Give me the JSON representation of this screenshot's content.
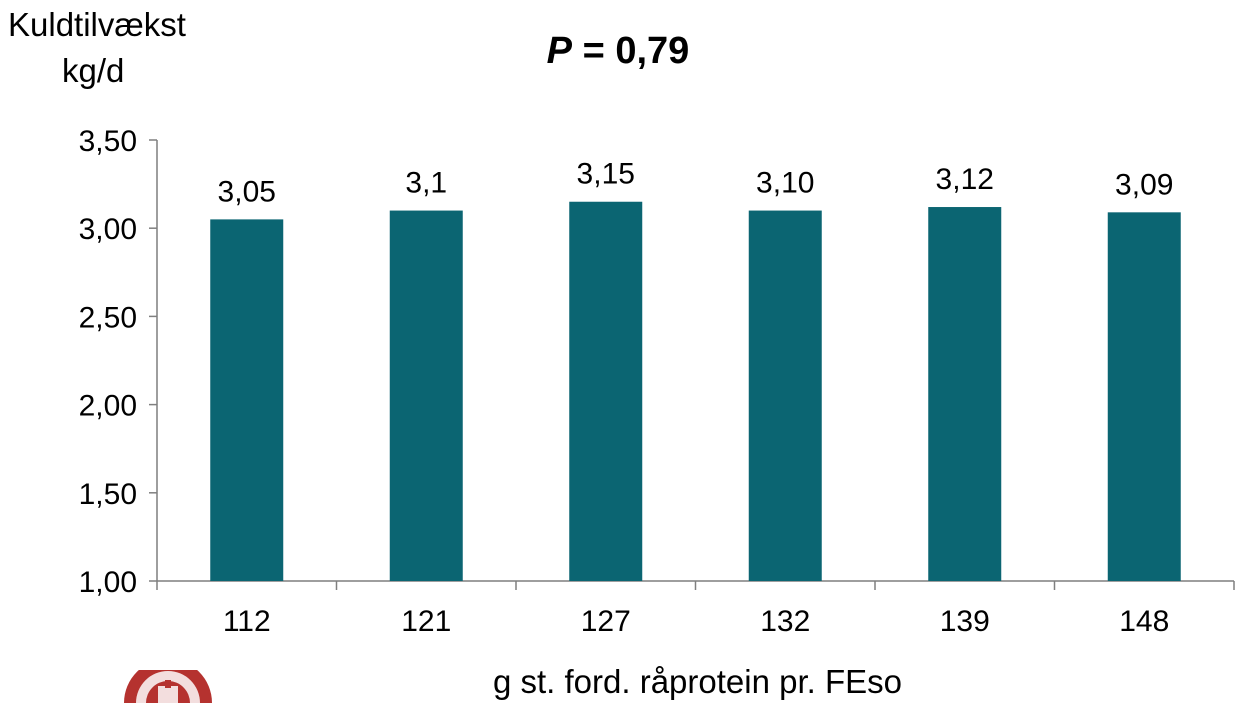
{
  "chart_data": {
    "type": "bar",
    "title_prefix": "P",
    "title_rest": "= 0,79",
    "ylabel_lines": [
      "Kuldtilvækst",
      "kg/d"
    ],
    "xlabel": "g st. ford. råprotein pr. FEso",
    "categories": [
      "112",
      "121",
      "127",
      "132",
      "139",
      "148"
    ],
    "values": [
      3.05,
      3.1,
      3.15,
      3.1,
      3.12,
      3.09
    ],
    "value_labels": [
      "3,05",
      "3,1",
      "3,15",
      "3,10",
      "3,12",
      "3,09"
    ],
    "ylim": [
      1.0,
      3.5
    ],
    "yticks": [
      1.0,
      1.5,
      2.0,
      2.5,
      3.0,
      3.5
    ],
    "ytick_labels": [
      "1,00",
      "1,50",
      "2,00",
      "2,50",
      "3,00",
      "3,50"
    ],
    "bar_color": "#0b6572",
    "grid": false,
    "legend": "none"
  }
}
